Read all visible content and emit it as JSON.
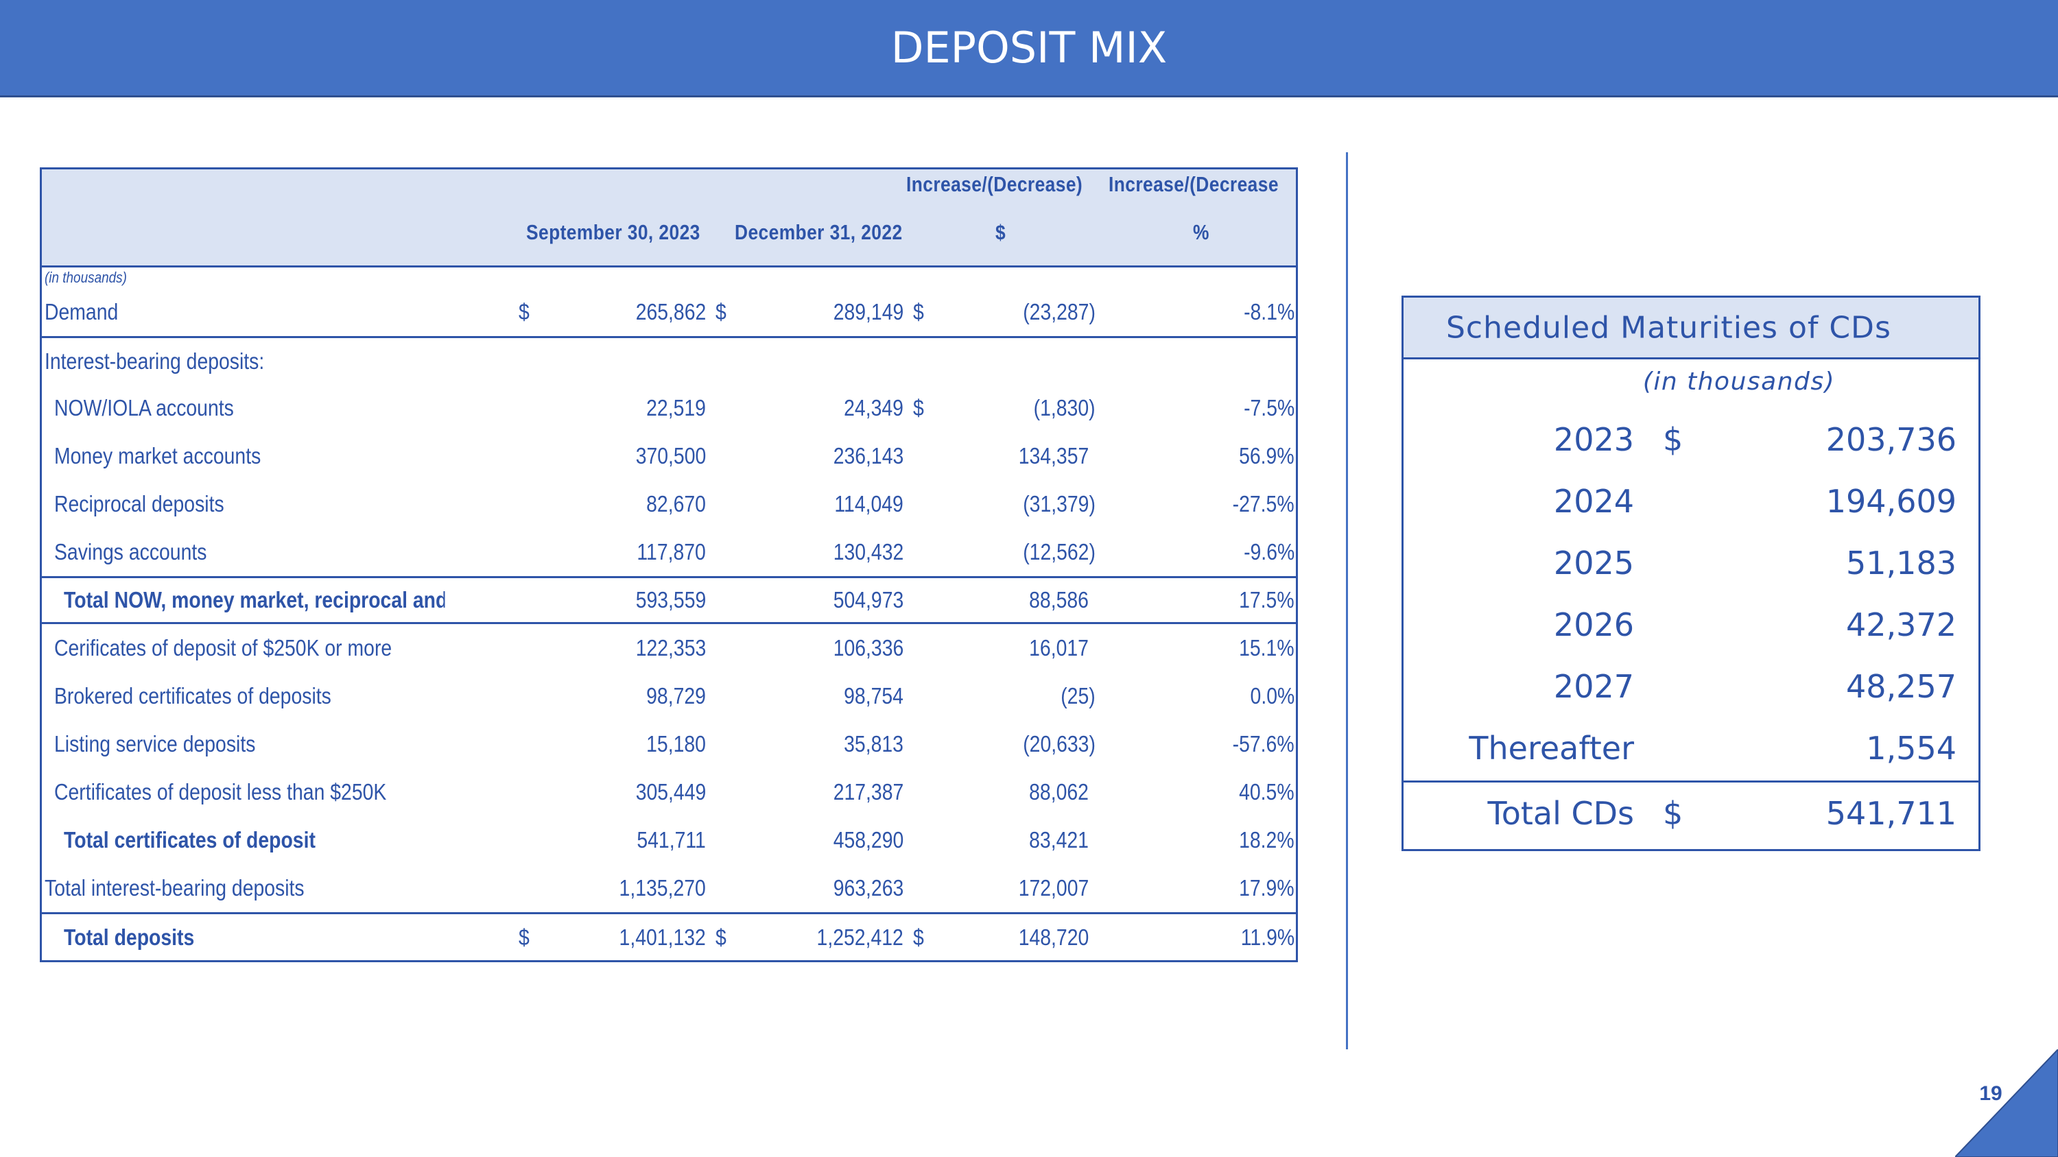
{
  "title": "DEPOSIT MIX",
  "table": {
    "headers": {
      "col1": "September 30, 2023",
      "col2": "December 31, 2022",
      "col3_line1": "Increase/(Decrease)",
      "col3_line2": "$",
      "col4_line1": "Increase/(Decrease",
      "col4_line2": "%"
    },
    "units_note": "(in thousands)",
    "rows": [
      {
        "label": "Demand",
        "sep": "$",
        "sep_val": "265,862",
        "dec_cur": "$",
        "dec": "289,149",
        "chg_cur": "$",
        "chg": "(23,287)",
        "pct": "-8.1%"
      },
      {
        "label": "Interest-bearing deposits:"
      },
      {
        "label": "NOW/IOLA accounts",
        "sep_val": "22,519",
        "dec": "24,349",
        "chg_cur": "$",
        "chg": "(1,830)",
        "pct": "-7.5%"
      },
      {
        "label": "Money market accounts",
        "sep_val": "370,500",
        "dec": "236,143",
        "chg": "134,357",
        "pct": "56.9%"
      },
      {
        "label": "Reciprocal deposits",
        "sep_val": "82,670",
        "dec": "114,049",
        "chg": "(31,379)",
        "pct": "-27.5%"
      },
      {
        "label": "Savings accounts",
        "sep_val": "117,870",
        "dec": "130,432",
        "chg": "(12,562)",
        "pct": "-9.6%"
      },
      {
        "label": "Total NOW, money market, reciprocal and savings",
        "sep_val": "593,559",
        "dec": "504,973",
        "chg": "88,586",
        "pct": "17.5%"
      },
      {
        "label": "Cerificates of deposit of $250K or more",
        "sep_val": "122,353",
        "dec": "106,336",
        "chg": "16,017",
        "pct": "15.1%"
      },
      {
        "label": "Brokered certificates of deposits",
        "sep_val": "98,729",
        "dec": "98,754",
        "chg": "(25)",
        "pct": "0.0%"
      },
      {
        "label": "Listing service deposits",
        "sep_val": "15,180",
        "dec": "35,813",
        "chg": "(20,633)",
        "pct": "-57.6%"
      },
      {
        "label": "Certificates of deposit less than $250K",
        "sep_val": "305,449",
        "dec": "217,387",
        "chg": "88,062",
        "pct": "40.5%"
      },
      {
        "label": "Total certificates of deposit",
        "sep_val": "541,711",
        "dec": "458,290",
        "chg": "83,421",
        "pct": "18.2%"
      },
      {
        "label": "Total interest-bearing deposits",
        "sep_val": "1,135,270",
        "dec": "963,263",
        "chg": "172,007",
        "pct": "17.9%"
      },
      {
        "label": "Total deposits",
        "sep": "$",
        "sep_val": "1,401,132",
        "dec_cur": "$",
        "dec": "1,252,412",
        "chg_cur": "$",
        "chg": "148,720",
        "pct": "11.9%"
      }
    ]
  },
  "cds": {
    "title": "Scheduled Maturities of CDs",
    "subtitle": "(in thousands)",
    "rows": [
      {
        "year": "2023",
        "cur": "$",
        "value": "203,736"
      },
      {
        "year": "2024",
        "value": "194,609"
      },
      {
        "year": "2025",
        "value": "51,183"
      },
      {
        "year": "2026",
        "value": "42,372"
      },
      {
        "year": "2027",
        "value": "48,257"
      },
      {
        "year": "Thereafter",
        "value": "1,554"
      }
    ],
    "total": {
      "year": "Total CDs",
      "cur": "$",
      "value": "541,711"
    }
  },
  "page_number": "19",
  "colors": {
    "brand_blue": "#4472c4",
    "text_blue": "#2e54a8",
    "header_fill": "#dae3f3"
  }
}
